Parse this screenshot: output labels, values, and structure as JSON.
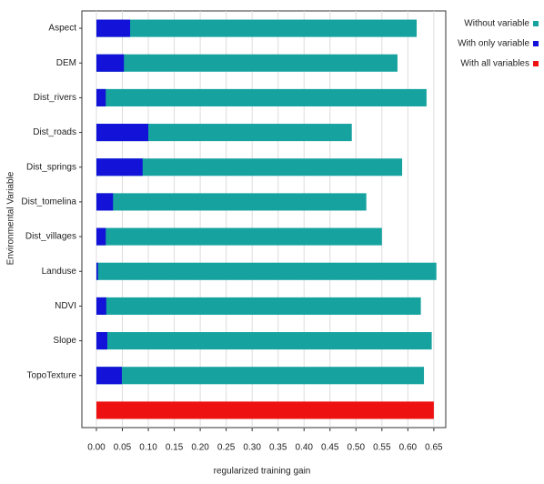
{
  "chart_data": {
    "type": "bar",
    "orientation": "horizontal",
    "x_label": "regularized training gain",
    "y_label": "Environmental Variable",
    "categories": [
      "Aspect",
      "DEM",
      "Dist_rivers",
      "Dist_roads",
      "Dist_springs",
      "Dist_tomelina",
      "Dist_villages",
      "Landuse",
      "NDVI",
      "Slope",
      "TopoTexture",
      null
    ],
    "series": [
      {
        "name": "Without variable",
        "color": "#16a3a0",
        "values": [
          0.617,
          0.58,
          0.636,
          0.492,
          0.589,
          0.52,
          0.55,
          0.655,
          0.625,
          0.646,
          0.631,
          null
        ]
      },
      {
        "name": "With only variable",
        "color": "#1212d8",
        "values": [
          0.065,
          0.053,
          0.018,
          0.1,
          0.089,
          0.032,
          0.018,
          0.003,
          0.019,
          0.021,
          0.049,
          null
        ]
      },
      {
        "name": "With all variables",
        "color": "#ee1111",
        "values": [
          null,
          null,
          null,
          null,
          null,
          null,
          null,
          null,
          null,
          null,
          null,
          0.65
        ]
      }
    ],
    "xlim": [
      -0.028,
      0.673
    ],
    "xticks": [
      {
        "value": 0,
        "label": "0.00"
      },
      {
        "value": 0.05,
        "label": "0.05"
      },
      {
        "value": 0.1,
        "label": "0.10"
      },
      {
        "value": 0.15,
        "label": "0.15"
      },
      {
        "value": 0.2,
        "label": "0.20"
      },
      {
        "value": 0.25,
        "label": "0.25"
      },
      {
        "value": 0.3,
        "label": "0.30"
      },
      {
        "value": 0.35,
        "label": "0.35"
      },
      {
        "value": 0.4,
        "label": "0.40"
      },
      {
        "value": 0.45,
        "label": "0.45"
      },
      {
        "value": 0.5,
        "label": "0.50"
      },
      {
        "value": 0.55,
        "label": "0.55"
      },
      {
        "value": 0.6,
        "label": "0.60"
      },
      {
        "value": 0.65,
        "label": "0.65"
      }
    ],
    "grid": true,
    "legend": "right"
  }
}
